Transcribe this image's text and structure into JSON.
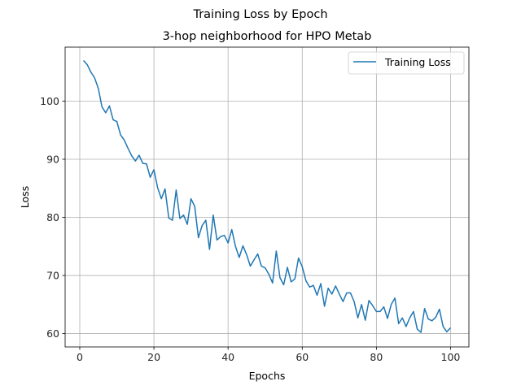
{
  "chart_data": {
    "type": "line",
    "suptitle": "Training Loss by Epoch",
    "title": "3-hop neighborhood for HPO Metab",
    "xlabel": "Epochs",
    "ylabel": "Loss",
    "xlim": [
      -3.95,
      104.95
    ],
    "ylim": [
      57.7,
      109.3
    ],
    "xticks": [
      0,
      20,
      40,
      60,
      80,
      100
    ],
    "yticks": [
      60,
      70,
      80,
      90,
      100
    ],
    "grid": true,
    "legend_position": "top-right",
    "series": [
      {
        "name": "Training Loss",
        "color": "#1f77b4",
        "x": [
          1,
          2,
          3,
          4,
          5,
          6,
          7,
          8,
          9,
          10,
          11,
          12,
          13,
          14,
          15,
          16,
          17,
          18,
          19,
          20,
          21,
          22,
          23,
          24,
          25,
          26,
          27,
          28,
          29,
          30,
          31,
          32,
          33,
          34,
          35,
          36,
          37,
          38,
          39,
          40,
          41,
          42,
          43,
          44,
          45,
          46,
          47,
          48,
          49,
          50,
          51,
          52,
          53,
          54,
          55,
          56,
          57,
          58,
          59,
          60,
          61,
          62,
          63,
          64,
          65,
          66,
          67,
          68,
          69,
          70,
          71,
          72,
          73,
          74,
          75,
          76,
          77,
          78,
          79,
          80,
          81,
          82,
          83,
          84,
          85,
          86,
          87,
          88,
          89,
          90,
          91,
          92,
          93,
          94,
          95,
          96,
          97,
          98,
          99,
          100
        ],
        "values": [
          107.0,
          106.3,
          105.0,
          104.0,
          102.2,
          99.0,
          98.0,
          99.2,
          96.8,
          96.5,
          94.2,
          93.3,
          91.9,
          90.6,
          89.7,
          90.7,
          89.3,
          89.2,
          86.9,
          88.2,
          85.1,
          83.2,
          84.9,
          79.9,
          79.5,
          84.7,
          79.8,
          80.4,
          78.8,
          83.2,
          81.9,
          76.5,
          78.6,
          79.5,
          74.5,
          80.4,
          76.1,
          76.7,
          76.9,
          75.6,
          77.9,
          75.0,
          73.1,
          75.1,
          73.6,
          71.6,
          72.7,
          73.7,
          71.6,
          71.3,
          70.2,
          68.7,
          74.2,
          69.6,
          68.4,
          71.4,
          68.9,
          69.4,
          73.0,
          71.5,
          69.1,
          68.0,
          68.3,
          66.6,
          68.6,
          64.7,
          67.8,
          66.8,
          68.2,
          66.8,
          65.5,
          67.0,
          67.0,
          65.5,
          62.7,
          65.0,
          62.3,
          65.7,
          64.8,
          63.8,
          63.8,
          64.6,
          62.6,
          65.0,
          66.1,
          61.7,
          62.7,
          61.2,
          62.7,
          63.8,
          60.8,
          60.2,
          64.3,
          62.5,
          62.2,
          62.8,
          64.2,
          61.2,
          60.3,
          61.0
        ]
      }
    ]
  }
}
